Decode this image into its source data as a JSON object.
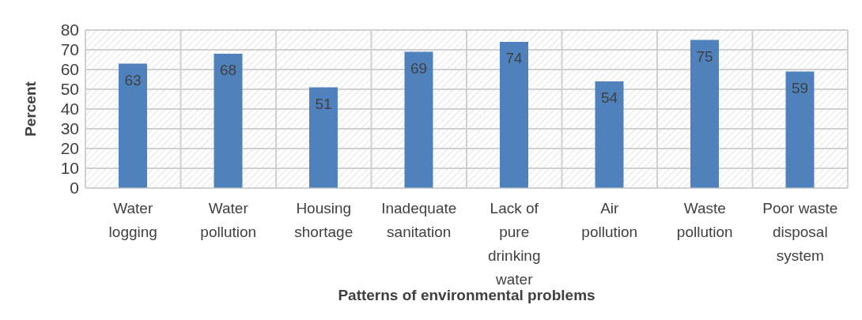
{
  "chart_data": {
    "type": "bar",
    "xlabel": "Patterns of environmental problems",
    "ylabel": "Percent",
    "categories": [
      "Water logging",
      "Water pollution",
      "Housing shortage",
      "Inadequate sanitation",
      "Lack of pure drinking water",
      "Air pollution",
      "Waste pollution",
      "Poor waste disposal system"
    ],
    "values": [
      63,
      68,
      51,
      69,
      74,
      54,
      75,
      59
    ],
    "color": "#4f81bd",
    "ylim": [
      0,
      80
    ],
    "yticks": [
      0,
      10,
      20,
      30,
      40,
      50,
      60,
      70,
      80
    ],
    "grid": true,
    "data_labels": true
  }
}
